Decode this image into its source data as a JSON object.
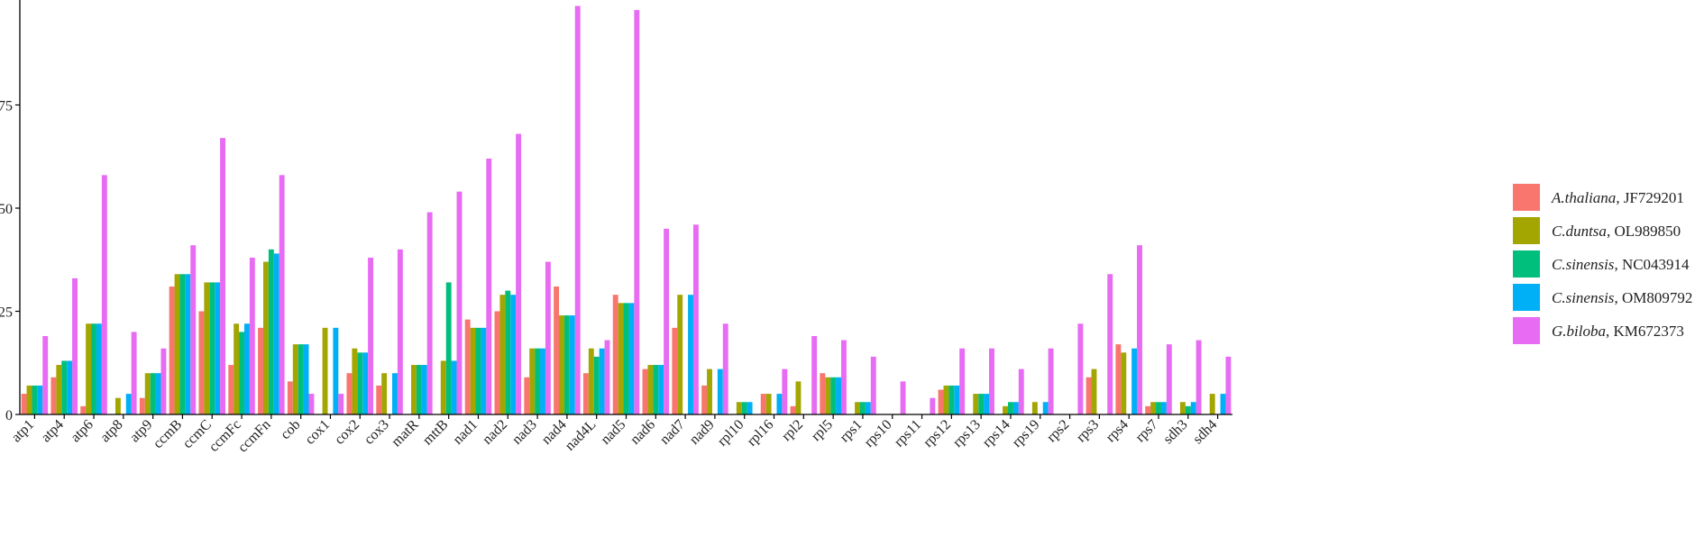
{
  "chart_data": {
    "type": "bar",
    "categories": [
      "atp1",
      "atp4",
      "atp6",
      "atp8",
      "atp9",
      "ccmB",
      "ccmC",
      "ccmFc",
      "ccmFn",
      "cob",
      "cox1",
      "cox2",
      "cox3",
      "matR",
      "mttB",
      "nad1",
      "nad2",
      "nad3",
      "nad4",
      "nad4L",
      "nad5",
      "nad6",
      "nad7",
      "nad9",
      "rpl10",
      "rpl16",
      "rpl2",
      "rpl5",
      "rps1",
      "rps10",
      "rps11",
      "rps12",
      "rps13",
      "rps14",
      "rps19",
      "rps2",
      "rps3",
      "rps4",
      "rps7",
      "sdh3",
      "sdh4"
    ],
    "series": [
      {
        "name": "A.thaliana, JF729201",
        "species": "A.thaliana",
        "accession": "JF729201",
        "color": "#F8766D",
        "values": [
          5,
          9,
          2,
          0,
          4,
          31,
          25,
          12,
          21,
          8,
          0,
          10,
          7,
          0,
          0,
          23,
          25,
          9,
          31,
          10,
          29,
          11,
          21,
          7,
          0,
          5,
          2,
          10,
          0,
          0,
          0,
          6,
          0,
          0,
          0,
          0,
          9,
          17,
          2,
          0,
          0
        ]
      },
      {
        "name": "C.duntsa, OL989850",
        "species": "C.duntsa",
        "accession": "OL989850",
        "color": "#A3A500",
        "values": [
          7,
          12,
          22,
          4,
          10,
          34,
          32,
          22,
          37,
          17,
          21,
          16,
          10,
          12,
          13,
          21,
          29,
          16,
          24,
          16,
          27,
          12,
          29,
          11,
          3,
          5,
          8,
          9,
          3,
          0,
          0,
          7,
          5,
          2,
          3,
          0,
          11,
          15,
          3,
          3,
          5
        ]
      },
      {
        "name": "C.sinensis, NC043914",
        "species": "C.sinensis",
        "accession": "NC043914",
        "color": "#00BF7D",
        "values": [
          7,
          13,
          22,
          0,
          10,
          34,
          32,
          20,
          40,
          17,
          0,
          15,
          0,
          12,
          32,
          21,
          30,
          16,
          24,
          14,
          27,
          12,
          0,
          0,
          3,
          0,
          0,
          9,
          3,
          0,
          0,
          7,
          5,
          3,
          0,
          0,
          0,
          0,
          3,
          2,
          0
        ]
      },
      {
        "name": "C.sinensis, OM809792",
        "species": "C.sinensis",
        "accession": "OM809792",
        "color": "#00B0F6",
        "values": [
          7,
          13,
          22,
          5,
          10,
          34,
          32,
          22,
          39,
          17,
          21,
          15,
          10,
          12,
          13,
          21,
          29,
          16,
          24,
          16,
          27,
          12,
          29,
          11,
          3,
          5,
          0,
          9,
          3,
          0,
          0,
          7,
          5,
          3,
          3,
          0,
          0,
          16,
          3,
          3,
          5
        ]
      },
      {
        "name": "G.biloba, KM672373",
        "species": "G.biloba",
        "accession": "KM672373",
        "color": "#E76BF3",
        "values": [
          19,
          33,
          58,
          20,
          16,
          41,
          67,
          38,
          58,
          5,
          5,
          38,
          40,
          49,
          54,
          62,
          68,
          37,
          99,
          18,
          98,
          45,
          46,
          22,
          0,
          11,
          19,
          18,
          14,
          8,
          4,
          16,
          16,
          11,
          16,
          22,
          34,
          41,
          17,
          18,
          14
        ]
      }
    ],
    "yticks": [
      0,
      25,
      50,
      75
    ],
    "ylim": [
      0,
      100
    ],
    "xlabel": "",
    "ylabel": "",
    "title": "",
    "grid": false,
    "legend_position": "right"
  }
}
